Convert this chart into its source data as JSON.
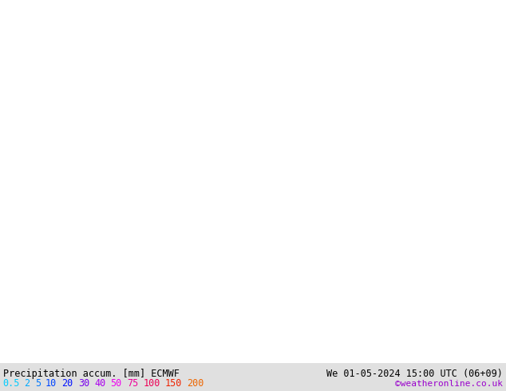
{
  "title_left": "Precipitation accum. [mm] ECMWF",
  "title_right": "We 01-05-2024 15:00 UTC (06+09)",
  "credit": "©weatheronline.co.uk",
  "legend_values": [
    "0.5",
    "2",
    "5",
    "10",
    "20",
    "30",
    "40",
    "50",
    "75",
    "100",
    "150",
    "200"
  ],
  "legend_colors": [
    "#00ccff",
    "#00aaff",
    "#0077ff",
    "#0044ff",
    "#0011ff",
    "#7700ee",
    "#aa00ee",
    "#ee00ee",
    "#ee0099",
    "#ee0055",
    "#ee2200",
    "#ee6600"
  ],
  "land_color": "#ccf0aa",
  "ocean_color": "#aaddff",
  "lake_color": "#aaddff",
  "border_color": "#999999",
  "coast_color": "#888888",
  "text_color": "#000000",
  "bar_bg": "#dddddd",
  "extent": [
    20.0,
    85.0,
    35.0,
    72.0
  ],
  "figsize": [
    6.34,
    4.9
  ],
  "dpi": 100
}
